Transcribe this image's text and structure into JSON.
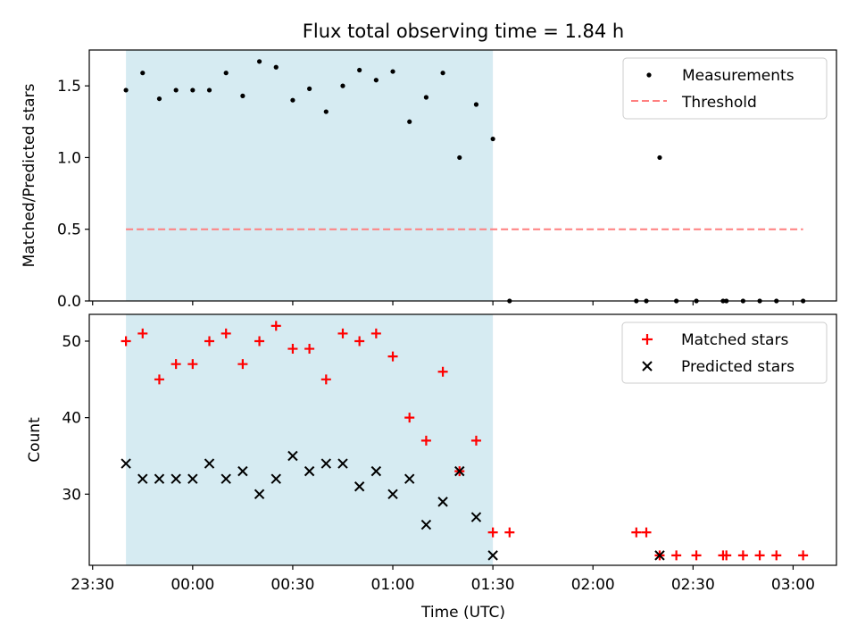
{
  "chart_data": [
    {
      "type": "scatter",
      "title": "Flux total observing time = 1.84 h",
      "ylabel": "Matched/Predicted stars",
      "ylim": [
        0,
        1.75
      ],
      "yticks": [
        0.0,
        0.5,
        1.0,
        1.5
      ],
      "ytick_labels": [
        "0.0",
        "0.5",
        "1.0",
        "1.5"
      ],
      "shaded_band": {
        "x_start": "23:40",
        "x_end": "01:30",
        "color": "#add8e6"
      },
      "legend": {
        "placement": "top-right",
        "entries": [
          "Measurements",
          "Threshold"
        ]
      },
      "series": [
        {
          "name": "Measurements",
          "marker": "dot",
          "color": "#000000",
          "x": [
            "23:40",
            "23:45",
            "23:50",
            "23:55",
            "00:00",
            "00:05",
            "00:10",
            "00:15",
            "00:20",
            "00:25",
            "00:30",
            "00:35",
            "00:40",
            "00:45",
            "00:50",
            "00:55",
            "01:00",
            "01:05",
            "01:10",
            "01:15",
            "01:20",
            "01:25",
            "01:30",
            "01:35",
            "02:13",
            "02:16",
            "02:20",
            "02:25",
            "02:31",
            "02:39",
            "02:40",
            "02:45",
            "02:50",
            "02:55",
            "03:03"
          ],
          "y": [
            1.47,
            1.59,
            1.41,
            1.47,
            1.47,
            1.47,
            1.59,
            1.43,
            1.67,
            1.63,
            1.4,
            1.48,
            1.32,
            1.5,
            1.61,
            1.54,
            1.6,
            1.25,
            1.42,
            1.59,
            1.0,
            1.37,
            1.13,
            0,
            0,
            0,
            1.0,
            0,
            0,
            0,
            0,
            0,
            0,
            0,
            0
          ]
        },
        {
          "name": "Threshold",
          "line": "dashed",
          "color": "#ff7f7f",
          "x": [
            "23:40",
            "03:03"
          ],
          "y": [
            0.5,
            0.5
          ]
        }
      ]
    },
    {
      "type": "scatter",
      "xlabel": "Time (UTC)",
      "ylabel": "Count",
      "ylim": [
        20.7,
        53.5
      ],
      "yticks": [
        30,
        40,
        50
      ],
      "ytick_labels": [
        "30",
        "40",
        "50"
      ],
      "xlim": [
        "23:29",
        "03:13"
      ],
      "xticks": [
        "23:30",
        "00:00",
        "00:30",
        "01:00",
        "01:30",
        "02:00",
        "02:30",
        "03:00"
      ],
      "xtick_labels": [
        "23:30",
        "00:00",
        "00:30",
        "01:00",
        "01:30",
        "02:00",
        "02:30",
        "03:00"
      ],
      "shaded_band": {
        "x_start": "23:40",
        "x_end": "01:30",
        "color": "#add8e6"
      },
      "legend": {
        "placement": "top-right",
        "entries": [
          "Matched stars",
          "Predicted stars"
        ]
      },
      "series": [
        {
          "name": "Matched stars",
          "marker": "plus",
          "color": "#ff0000",
          "x": [
            "23:40",
            "23:45",
            "23:50",
            "23:55",
            "00:00",
            "00:05",
            "00:10",
            "00:15",
            "00:20",
            "00:25",
            "00:30",
            "00:35",
            "00:40",
            "00:45",
            "00:50",
            "00:55",
            "01:00",
            "01:05",
            "01:10",
            "01:15",
            "01:20",
            "01:25",
            "01:30",
            "01:35",
            "02:13",
            "02:16",
            "02:20",
            "02:25",
            "02:31",
            "02:39",
            "02:40",
            "02:45",
            "02:50",
            "02:55",
            "03:03"
          ],
          "y": [
            50,
            51,
            45,
            47,
            47,
            50,
            51,
            47,
            50,
            52,
            49,
            49,
            45,
            51,
            50,
            51,
            48,
            40,
            37,
            46,
            33,
            37,
            25,
            25,
            25,
            25,
            22,
            22,
            22,
            22,
            22,
            22,
            22,
            22,
            22
          ]
        },
        {
          "name": "Predicted stars",
          "marker": "x",
          "color": "#000000",
          "x": [
            "23:40",
            "23:45",
            "23:50",
            "23:55",
            "00:00",
            "00:05",
            "00:10",
            "00:15",
            "00:20",
            "00:25",
            "00:30",
            "00:35",
            "00:40",
            "00:45",
            "00:50",
            "00:55",
            "01:00",
            "01:05",
            "01:10",
            "01:15",
            "01:20",
            "01:25",
            "01:30",
            "02:20"
          ],
          "y": [
            34,
            32,
            32,
            32,
            32,
            34,
            32,
            33,
            30,
            32,
            35,
            33,
            34,
            34,
            31,
            33,
            30,
            32,
            26,
            29,
            33,
            27,
            22,
            22
          ]
        }
      ]
    }
  ]
}
